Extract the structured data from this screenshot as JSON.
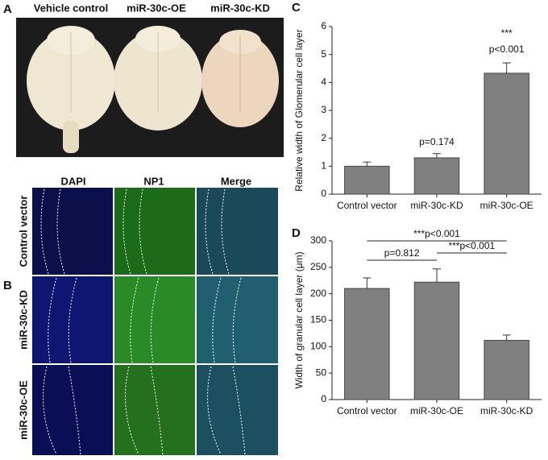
{
  "panels": {
    "a": {
      "label": "A",
      "groups": [
        "Vehicle control",
        "miR-30c-OE",
        "miR-30c-KD"
      ]
    },
    "b": {
      "label": "B",
      "columns": [
        "DAPI",
        "NP1",
        "Merge"
      ],
      "rows": [
        "Control vector",
        "miR-30c-KD",
        "miR-30c-OE"
      ]
    }
  },
  "chart_data": [
    {
      "type": "bar",
      "panel_label": "C",
      "ylabel": "Relative width of Glomerular cell layer",
      "categories": [
        "Control vector",
        "miR-30c-KD",
        "miR-30c-OE"
      ],
      "values": [
        1.0,
        1.3,
        4.33
      ],
      "errors": [
        0.15,
        0.15,
        0.37
      ],
      "color": "#808080",
      "ylim": [
        0,
        6
      ],
      "yticks": [
        0,
        1,
        2,
        3,
        4,
        5,
        6
      ],
      "annotations": [
        "p=0.174",
        "***",
        "p<0.001"
      ]
    },
    {
      "type": "bar",
      "panel_label": "D",
      "ylabel": "Width of granular cell layer (μm)",
      "categories": [
        "Control vector",
        "miR-30c-OE",
        "miR-30c-KD"
      ],
      "values": [
        210,
        222,
        112
      ],
      "errors": [
        20,
        25,
        10
      ],
      "color": "#808080",
      "ylim": [
        0,
        300
      ],
      "yticks": [
        0,
        50,
        100,
        150,
        200,
        250,
        300
      ],
      "annotations": [
        "***p<0.001",
        "p=0.812",
        "***p<0.001"
      ]
    }
  ]
}
